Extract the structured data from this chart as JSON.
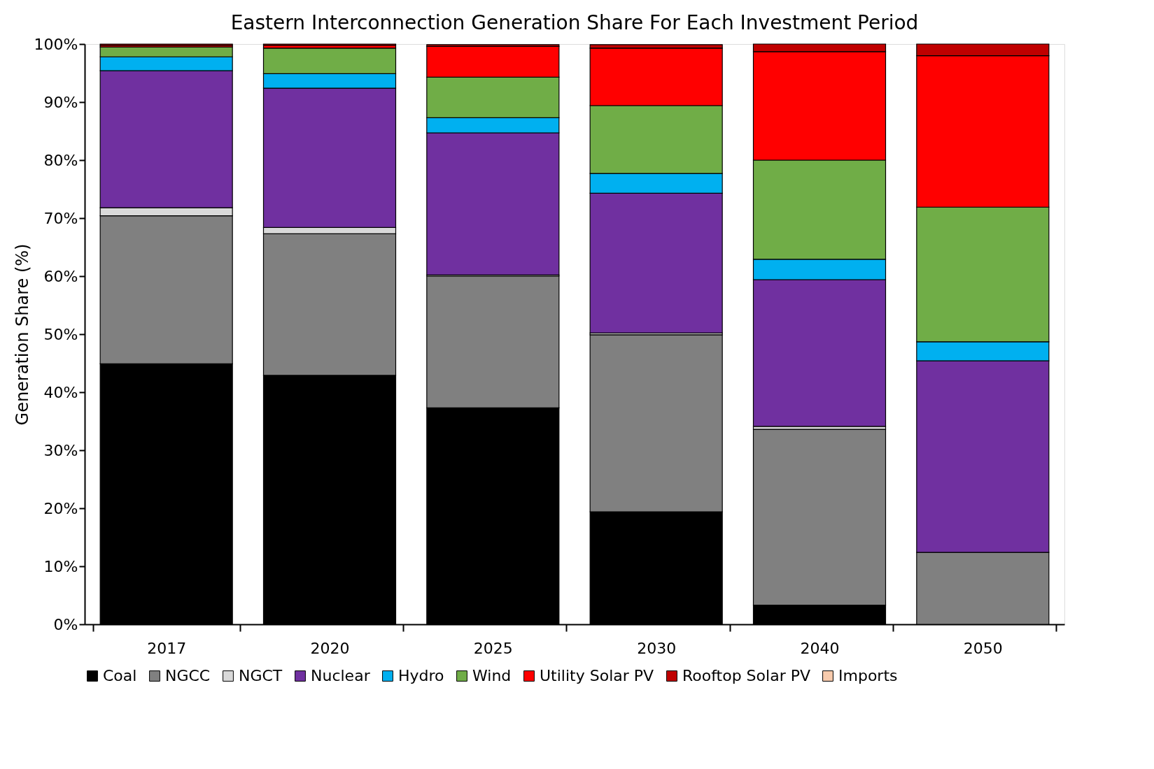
{
  "chart_data": {
    "type": "bar",
    "stacked": true,
    "title": "Eastern Interconnection Generation Share For Each Investment Period",
    "ylabel": "Generation Share (%)",
    "categories": [
      "2017",
      "2020",
      "2025",
      "2030",
      "2040",
      "2050"
    ],
    "series": [
      {
        "name": "Coal",
        "color": "#000000",
        "values": [
          44.9,
          42.9,
          37.3,
          19.4,
          3.3,
          0
        ]
      },
      {
        "name": "NGCC",
        "color": "#808080",
        "values": [
          25.5,
          24.4,
          22.7,
          30.5,
          30.3,
          12.4
        ]
      },
      {
        "name": "NGCT",
        "color": "#d9d9d9",
        "values": [
          1.4,
          1.1,
          0.2,
          0.3,
          0.5,
          0
        ]
      },
      {
        "name": "Nuclear",
        "color": "#7030a0",
        "values": [
          23.6,
          24.0,
          24.5,
          24.1,
          25.3,
          33.0
        ]
      },
      {
        "name": "Hydro",
        "color": "#00b0f0",
        "values": [
          2.4,
          2.5,
          2.6,
          3.4,
          3.5,
          3.3
        ]
      },
      {
        "name": "Wind",
        "color": "#70ad47",
        "values": [
          1.7,
          4.4,
          7.0,
          11.7,
          17.1,
          23.2
        ]
      },
      {
        "name": "Utility Solar PV",
        "color": "#ff0000",
        "values": [
          0.3,
          0.5,
          5.3,
          9.9,
          18.7,
          26.1
        ]
      },
      {
        "name": "Rooftop Solar PV",
        "color": "#c00000",
        "values": [
          0.2,
          0.2,
          0.3,
          0.6,
          1.3,
          2.0
        ]
      },
      {
        "name": "Imports",
        "color": "#f8cbad",
        "values": [
          0,
          0,
          0,
          0,
          0,
          0
        ]
      }
    ],
    "ylim": [
      0,
      100
    ],
    "yticks": [
      {
        "value": 0,
        "label": "0%"
      },
      {
        "value": 10,
        "label": "10%"
      },
      {
        "value": 20,
        "label": "20%"
      },
      {
        "value": 30,
        "label": "30%"
      },
      {
        "value": 40,
        "label": "40%"
      },
      {
        "value": 50,
        "label": "50%"
      },
      {
        "value": 60,
        "label": "60%"
      },
      {
        "value": 70,
        "label": "70%"
      },
      {
        "value": 80,
        "label": "80%"
      },
      {
        "value": 90,
        "label": "90%"
      },
      {
        "value": 100,
        "label": "100%"
      }
    ],
    "grid": false,
    "legend": "bottom"
  }
}
